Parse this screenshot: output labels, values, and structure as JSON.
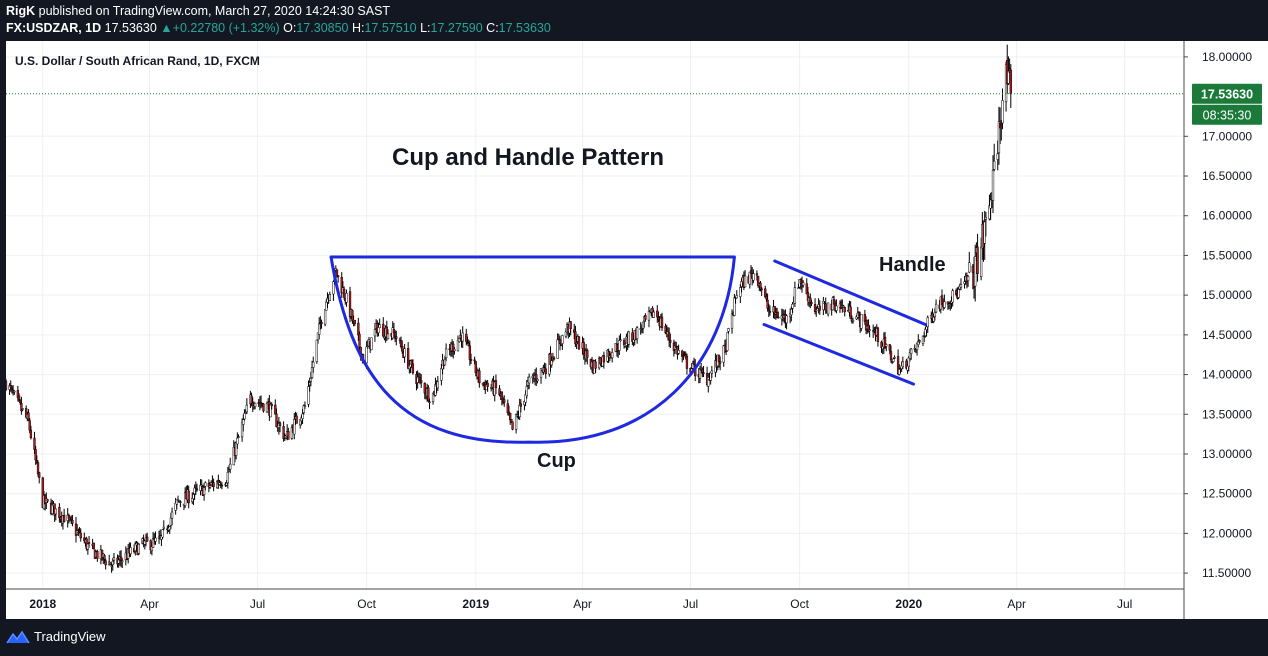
{
  "header": {
    "author": "RigK",
    "published": "published on TradingView.com, March 27, 2020 14:24:30 SAST",
    "symbol": "FX:USDZAR, 1D",
    "last": "17.53630",
    "change": "+0.22780 (+1.32%)",
    "open_label": "O:",
    "open": "17.30850",
    "high_label": "H:",
    "high": "17.57510",
    "low_label": "L:",
    "low": "17.27590",
    "close_label": "C:",
    "close": "17.53630"
  },
  "pane": {
    "title": "U.S. Dollar / South African Rand, 1D, FXCM",
    "price_tag": "17.53630",
    "countdown_tag": "08:35:30"
  },
  "annotations": {
    "pattern_title": "Cup and Handle Pattern",
    "cup_label": "Cup",
    "handle_label": "Handle"
  },
  "footer": {
    "brand": "TradingView"
  },
  "colors": {
    "background": "#ffffff",
    "frame": "#131722",
    "bull_candle": "#ffffff",
    "bear_candle": "#b71c1c",
    "wick": "#000000",
    "drawing": "#1f29e0",
    "price_tag": "#1b7a3a",
    "change_text": "#26a69a"
  },
  "chart_data": {
    "type": "candlestick",
    "title": "U.S. Dollar / South African Rand, 1D, FXCM",
    "x_tick_labels": [
      "2018",
      "Apr",
      "Jul",
      "Oct",
      "2019",
      "Apr",
      "Jul",
      "Oct",
      "2020",
      "Apr",
      "Jul"
    ],
    "y_tick_labels": [
      "11.50000",
      "12.00000",
      "12.50000",
      "13.00000",
      "13.50000",
      "14.00000",
      "14.50000",
      "15.00000",
      "15.50000",
      "16.00000",
      "16.50000",
      "17.00000",
      "18.00000"
    ],
    "ylim": [
      11.3,
      18.2
    ],
    "x_range": [
      "2017-12-01",
      "2020-08-20"
    ],
    "last_price": 17.5363,
    "close_series": [
      {
        "date": "2017-12-01",
        "close": 13.9
      },
      {
        "date": "2017-12-20",
        "close": 13.4
      },
      {
        "date": "2018-01-01",
        "close": 12.4
      },
      {
        "date": "2018-01-20",
        "close": 12.2
      },
      {
        "date": "2018-02-10",
        "close": 11.8
      },
      {
        "date": "2018-03-01",
        "close": 11.6
      },
      {
        "date": "2018-03-25",
        "close": 11.85
      },
      {
        "date": "2018-04-10",
        "close": 11.9
      },
      {
        "date": "2018-04-25",
        "close": 12.4
      },
      {
        "date": "2018-05-15",
        "close": 12.55
      },
      {
        "date": "2018-06-05",
        "close": 12.7
      },
      {
        "date": "2018-06-25",
        "close": 13.7
      },
      {
        "date": "2018-07-10",
        "close": 13.6
      },
      {
        "date": "2018-07-25",
        "close": 13.2
      },
      {
        "date": "2018-08-10",
        "close": 13.6
      },
      {
        "date": "2018-08-25",
        "close": 14.8
      },
      {
        "date": "2018-09-05",
        "close": 15.3
      },
      {
        "date": "2018-09-15",
        "close": 14.9
      },
      {
        "date": "2018-09-28",
        "close": 14.2
      },
      {
        "date": "2018-10-10",
        "close": 14.6
      },
      {
        "date": "2018-10-25",
        "close": 14.5
      },
      {
        "date": "2018-11-10",
        "close": 14.0
      },
      {
        "date": "2018-11-25",
        "close": 13.7
      },
      {
        "date": "2018-12-05",
        "close": 14.2
      },
      {
        "date": "2018-12-20",
        "close": 14.5
      },
      {
        "date": "2019-01-05",
        "close": 13.9
      },
      {
        "date": "2019-01-20",
        "close": 13.8
      },
      {
        "date": "2019-02-01",
        "close": 13.3
      },
      {
        "date": "2019-02-15",
        "close": 13.9
      },
      {
        "date": "2019-03-01",
        "close": 14.1
      },
      {
        "date": "2019-03-20",
        "close": 14.6
      },
      {
        "date": "2019-04-10",
        "close": 14.1
      },
      {
        "date": "2019-04-25",
        "close": 14.3
      },
      {
        "date": "2019-05-15",
        "close": 14.5
      },
      {
        "date": "2019-06-01",
        "close": 14.8
      },
      {
        "date": "2019-06-15",
        "close": 14.4
      },
      {
        "date": "2019-06-30",
        "close": 14.1
      },
      {
        "date": "2019-07-15",
        "close": 13.95
      },
      {
        "date": "2019-07-30",
        "close": 14.3
      },
      {
        "date": "2019-08-10",
        "close": 15.1
      },
      {
        "date": "2019-08-25",
        "close": 15.3
      },
      {
        "date": "2019-09-05",
        "close": 14.8
      },
      {
        "date": "2019-09-20",
        "close": 14.7
      },
      {
        "date": "2019-10-01",
        "close": 15.2
      },
      {
        "date": "2019-10-15",
        "close": 14.8
      },
      {
        "date": "2019-11-01",
        "close": 14.9
      },
      {
        "date": "2019-11-20",
        "close": 14.7
      },
      {
        "date": "2019-12-05",
        "close": 14.5
      },
      {
        "date": "2019-12-25",
        "close": 14.05
      },
      {
        "date": "2020-01-10",
        "close": 14.4
      },
      {
        "date": "2020-01-25",
        "close": 14.9
      },
      {
        "date": "2020-02-10",
        "close": 15.0
      },
      {
        "date": "2020-02-25",
        "close": 15.3
      },
      {
        "date": "2020-03-05",
        "close": 15.8
      },
      {
        "date": "2020-03-12",
        "close": 16.4
      },
      {
        "date": "2020-03-18",
        "close": 17.2
      },
      {
        "date": "2020-03-22",
        "close": 17.8
      },
      {
        "date": "2020-03-27",
        "close": 17.5363
      }
    ],
    "drawings": {
      "resistance_line": {
        "from": {
          "date": "2018-09-01",
          "price": 15.48
        },
        "to": {
          "date": "2019-08-07",
          "price": 15.48
        }
      },
      "cup_arc": [
        {
          "date": "2018-09-01",
          "price": 15.48
        },
        {
          "date": "2019-02-15",
          "price": 13.15
        },
        {
          "date": "2019-08-07",
          "price": 15.48
        }
      ],
      "handle_upper": {
        "from": {
          "date": "2019-09-10",
          "price": 15.43
        },
        "to": {
          "date": "2020-01-15",
          "price": 14.63
        }
      },
      "handle_lower": {
        "from": {
          "date": "2019-09-01",
          "price": 14.63
        },
        "to": {
          "date": "2020-01-05",
          "price": 13.88
        }
      }
    }
  }
}
